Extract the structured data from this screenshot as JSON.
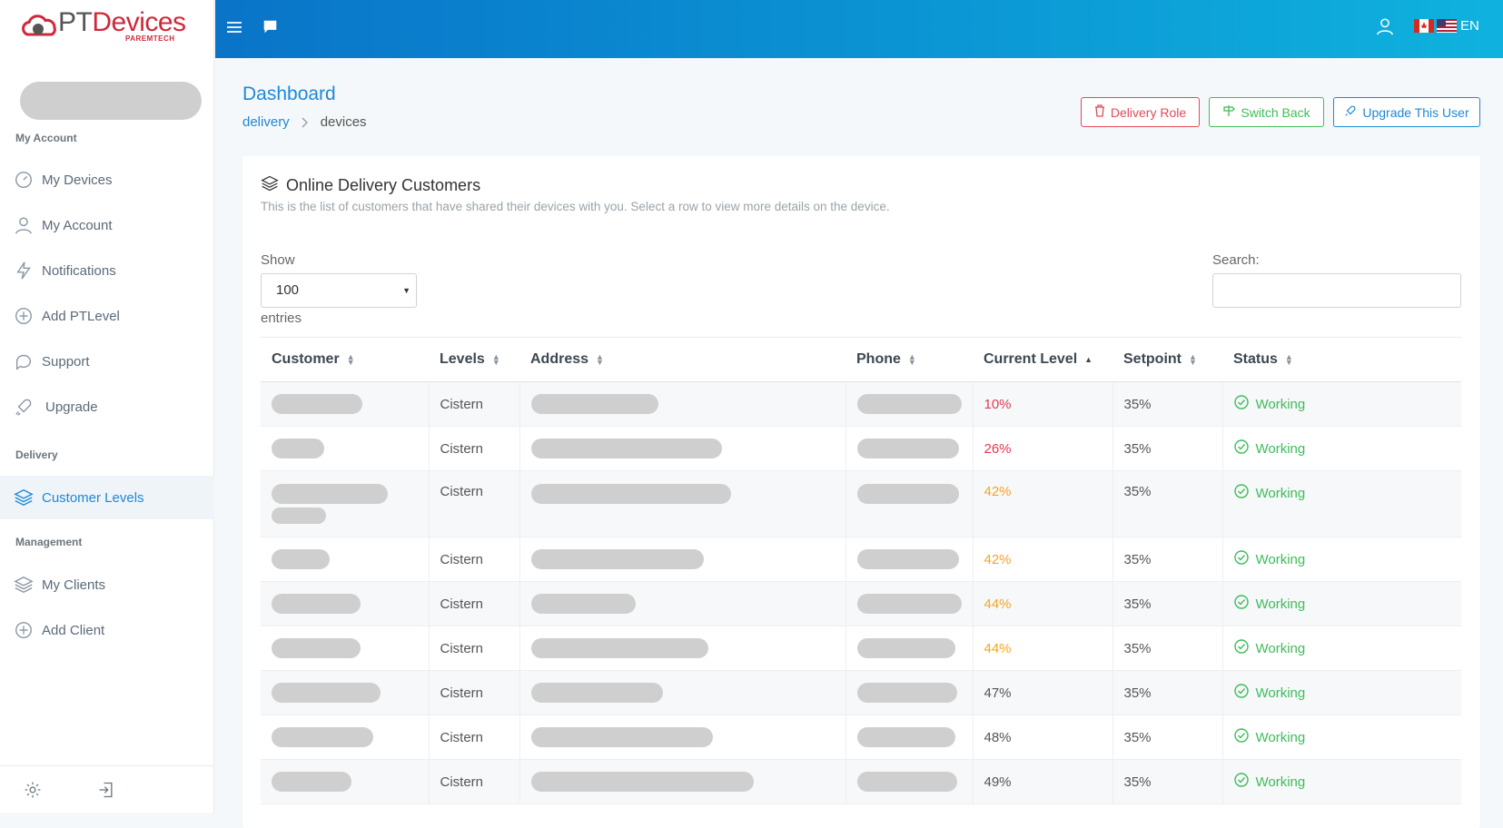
{
  "brand": {
    "pt": "PT",
    "devices": "Devices",
    "sub": "PAREMTECH"
  },
  "sidebar": {
    "section_account": "My Account",
    "section_delivery": "Delivery",
    "section_management": "Management",
    "items": [
      {
        "label": "My Devices",
        "icon": "speedometer-icon"
      },
      {
        "label": "My Account",
        "icon": "user-icon"
      },
      {
        "label": "Notifications",
        "icon": "bolt-icon"
      },
      {
        "label": "Add PTLevel",
        "icon": "plus-circle-icon"
      },
      {
        "label": "Support",
        "icon": "chat-icon"
      },
      {
        "label": "Upgrade",
        "icon": "rocket-icon"
      },
      {
        "label": "Customer Levels",
        "icon": "layers-icon"
      },
      {
        "label": "My Clients",
        "icon": "layers-icon"
      },
      {
        "label": "Add Client",
        "icon": "plus-circle-icon"
      }
    ]
  },
  "topbar": {
    "lang": "EN"
  },
  "header": {
    "title": "Dashboard",
    "breadcrumb": [
      "delivery",
      "devices"
    ],
    "btn_delivery_role": "Delivery Role",
    "btn_switch_back": "Switch Back",
    "btn_upgrade_user": "Upgrade This User"
  },
  "card": {
    "title": "Online Delivery Customers",
    "subtitle": "This is the list of customers that have shared their devices with you. Select a row to view more details on the device.",
    "show_label": "Show",
    "entries_value": "100",
    "entries_label": "entries",
    "search_label": "Search:"
  },
  "table": {
    "columns": [
      "Customer",
      "Levels",
      "Address",
      "Phone",
      "Current Level",
      "Setpoint",
      "Status"
    ],
    "rows": [
      {
        "level": "Cistern",
        "current": "10%",
        "setpoint": "35%",
        "status": "Working",
        "color": "#e53950"
      },
      {
        "level": "Cistern",
        "current": "26%",
        "setpoint": "35%",
        "status": "Working",
        "color": "#e53950"
      },
      {
        "level": "Cistern",
        "current": "42%",
        "setpoint": "35%",
        "status": "Working",
        "color": "#f5a623"
      },
      {
        "level": "Cistern",
        "current": "42%",
        "setpoint": "35%",
        "status": "Working",
        "color": "#f5a623"
      },
      {
        "level": "Cistern",
        "current": "44%",
        "setpoint": "35%",
        "status": "Working",
        "color": "#f5a623"
      },
      {
        "level": "Cistern",
        "current": "44%",
        "setpoint": "35%",
        "status": "Working",
        "color": "#f5a623"
      },
      {
        "level": "Cistern",
        "current": "47%",
        "setpoint": "35%",
        "status": "Working",
        "color": "#555555"
      },
      {
        "level": "Cistern",
        "current": "48%",
        "setpoint": "35%",
        "status": "Working",
        "color": "#555555"
      },
      {
        "level": "Cistern",
        "current": "49%",
        "setpoint": "35%",
        "status": "Working",
        "color": "#555555"
      }
    ]
  },
  "colors": {
    "accent": "#1e88d8",
    "danger": "#e24b5a",
    "success": "#3ebd5a",
    "warning": "#f5a623"
  }
}
